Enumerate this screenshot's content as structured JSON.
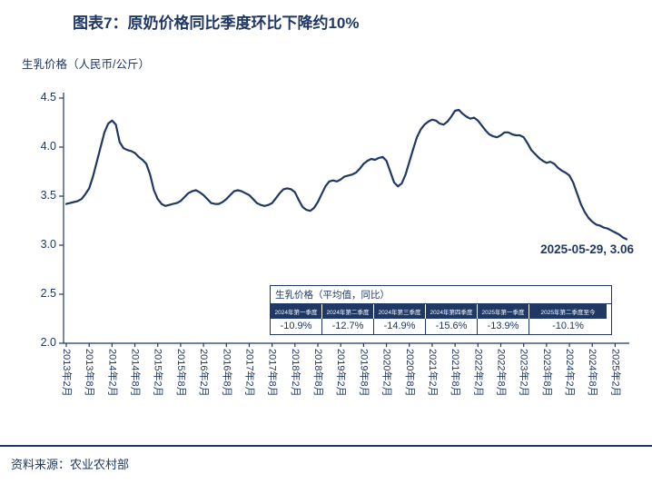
{
  "title": "图表7：原奶价格同比季度环比下降约10%",
  "source": "资料来源：农业农村部",
  "colors": {
    "accent": "#1f3864",
    "line": "#1f3864",
    "table_header_bg": "#1f3864",
    "table_header_text": "#ffffff"
  },
  "chart_data": {
    "type": "line",
    "title": "",
    "xlabel": "",
    "ylabel": "生乳价格（人民币/公斤）",
    "ylim": [
      2.0,
      4.5
    ],
    "yticks": [
      2.0,
      2.5,
      3.0,
      3.5,
      4.0,
      4.5
    ],
    "grid": false,
    "legend": "none",
    "x_tick_interval_months": 6,
    "x_tick_labels": [
      "2013年2月",
      "2013年8月",
      "2014年2月",
      "2014年8月",
      "2015年2月",
      "2015年8月",
      "2016年2月",
      "2016年8月",
      "2017年2月",
      "2017年8月",
      "2018年2月",
      "2018年8月",
      "2019年2月",
      "2019年8月",
      "2020年2月",
      "2020年8月",
      "2021年2月",
      "2021年8月",
      "2022年2月",
      "2022年8月",
      "2023年2月",
      "2023年8月",
      "2024年2月",
      "2024年8月",
      "2025年2月"
    ],
    "series": [
      {
        "name": "生乳价格",
        "start": "2013-02",
        "end": "2025-05",
        "frequency": "monthly",
        "values": [
          3.42,
          3.43,
          3.44,
          3.45,
          3.47,
          3.52,
          3.58,
          3.7,
          3.85,
          4.0,
          4.15,
          4.24,
          4.27,
          4.23,
          4.05,
          3.99,
          3.97,
          3.96,
          3.94,
          3.9,
          3.87,
          3.83,
          3.72,
          3.56,
          3.47,
          3.42,
          3.4,
          3.41,
          3.42,
          3.43,
          3.45,
          3.49,
          3.53,
          3.55,
          3.56,
          3.54,
          3.51,
          3.47,
          3.43,
          3.42,
          3.42,
          3.44,
          3.47,
          3.51,
          3.55,
          3.56,
          3.55,
          3.53,
          3.51,
          3.47,
          3.43,
          3.41,
          3.4,
          3.41,
          3.43,
          3.48,
          3.53,
          3.57,
          3.58,
          3.57,
          3.54,
          3.46,
          3.39,
          3.36,
          3.35,
          3.38,
          3.44,
          3.52,
          3.6,
          3.65,
          3.66,
          3.65,
          3.67,
          3.7,
          3.71,
          3.72,
          3.74,
          3.78,
          3.83,
          3.86,
          3.88,
          3.87,
          3.89,
          3.9,
          3.86,
          3.75,
          3.64,
          3.6,
          3.63,
          3.72,
          3.85,
          3.98,
          4.1,
          4.18,
          4.23,
          4.26,
          4.28,
          4.27,
          4.24,
          4.23,
          4.26,
          4.31,
          4.37,
          4.38,
          4.34,
          4.31,
          4.29,
          4.3,
          4.27,
          4.22,
          4.17,
          4.13,
          4.11,
          4.1,
          4.12,
          4.15,
          4.15,
          4.13,
          4.12,
          4.12,
          4.1,
          4.04,
          3.97,
          3.93,
          3.89,
          3.86,
          3.84,
          3.85,
          3.83,
          3.79,
          3.76,
          3.74,
          3.71,
          3.64,
          3.53,
          3.42,
          3.34,
          3.28,
          3.24,
          3.21,
          3.2,
          3.18,
          3.17,
          3.15,
          3.13,
          3.11,
          3.08,
          3.06
        ]
      }
    ],
    "annotation": {
      "label": "2025-05-29, 3.06",
      "date": "2025-05-29",
      "value": 3.06
    },
    "overlay_table": {
      "title": "生乳价格（平均值，同比）",
      "columns": [
        "2024年第一季度",
        "2024年第二季度",
        "2024年第三季度",
        "2024年第四季度",
        "2025年第一季度",
        "2025年第二季度至今"
      ],
      "values": [
        "-10.9%",
        "-12.7%",
        "-14.9%",
        "-15.6%",
        "-13.9%",
        "-10.1%"
      ]
    }
  }
}
